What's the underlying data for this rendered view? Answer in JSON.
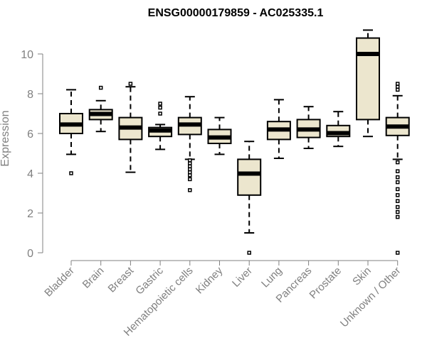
{
  "chart_data": {
    "type": "boxplot",
    "title": "ENSG00000179859 - AC025335.1",
    "xlabel": "",
    "ylabel": "Expression",
    "ylim": [
      0,
      11.5
    ],
    "yticks": [
      0,
      2,
      4,
      6,
      8,
      10
    ],
    "grid": false,
    "legend": "none",
    "colors": {
      "box_fill": "#ECE6CE",
      "box_stroke": "#000000",
      "axis": "#808080",
      "text": "#808080",
      "title": "#000000"
    },
    "categories": [
      "Bladder",
      "Brain",
      "Breast",
      "Gastric",
      "Hematopoietic cells",
      "Kidney",
      "Liver",
      "Lung",
      "Pancreas",
      "Prostate",
      "Skin",
      "Unknown / Other"
    ],
    "boxes": [
      {
        "category": "Bladder",
        "whisker_low": 4.95,
        "q1": 6.0,
        "median": 6.45,
        "q3": 7.0,
        "whisker_high": 8.2,
        "outliers": [
          4.0
        ]
      },
      {
        "category": "Brain",
        "whisker_low": 6.1,
        "q1": 6.7,
        "median": 6.98,
        "q3": 7.2,
        "whisker_high": 7.65,
        "outliers": [
          8.3
        ]
      },
      {
        "category": "Breast",
        "whisker_low": 4.05,
        "q1": 5.7,
        "median": 6.3,
        "q3": 6.8,
        "whisker_high": 8.35,
        "outliers": [
          8.5
        ]
      },
      {
        "category": "Gastric",
        "whisker_low": 5.2,
        "q1": 5.85,
        "median": 6.15,
        "q3": 6.3,
        "whisker_high": 6.45,
        "outliers": [
          7.0,
          7.3,
          7.5
        ]
      },
      {
        "category": "Hematopoietic cells",
        "whisker_low": 4.7,
        "q1": 5.95,
        "median": 6.45,
        "q3": 6.8,
        "whisker_high": 7.85,
        "outliers": [
          3.15,
          3.7,
          3.9,
          4.05,
          4.2,
          4.35,
          4.5,
          4.65
        ]
      },
      {
        "category": "Kidney",
        "whisker_low": 4.95,
        "q1": 5.5,
        "median": 5.8,
        "q3": 6.2,
        "whisker_high": 6.8,
        "outliers": []
      },
      {
        "category": "Liver",
        "whisker_low": 1.0,
        "q1": 2.9,
        "median": 3.98,
        "q3": 4.7,
        "whisker_high": 5.6,
        "outliers": [
          0.0
        ]
      },
      {
        "category": "Lung",
        "whisker_low": 4.75,
        "q1": 5.7,
        "median": 6.2,
        "q3": 6.6,
        "whisker_high": 7.7,
        "outliers": []
      },
      {
        "category": "Pancreas",
        "whisker_low": 5.25,
        "q1": 5.8,
        "median": 6.2,
        "q3": 6.7,
        "whisker_high": 7.35,
        "outliers": []
      },
      {
        "category": "Prostate",
        "whisker_low": 5.35,
        "q1": 5.85,
        "median": 6.02,
        "q3": 6.4,
        "whisker_high": 7.1,
        "outliers": []
      },
      {
        "category": "Skin",
        "whisker_low": 5.85,
        "q1": 6.7,
        "median": 10.0,
        "q3": 10.8,
        "whisker_high": 11.2,
        "outliers": []
      },
      {
        "category": "Unknown / Other",
        "whisker_low": 4.7,
        "q1": 5.9,
        "median": 6.35,
        "q3": 6.8,
        "whisker_high": 7.9,
        "outliers": [
          0.0,
          1.8,
          2.05,
          2.3,
          2.6,
          2.9,
          3.2,
          3.55,
          3.8,
          4.1,
          4.55,
          8.2,
          8.35,
          8.5
        ]
      }
    ]
  }
}
